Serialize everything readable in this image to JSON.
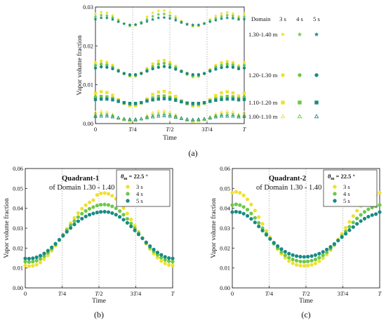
{
  "colors": {
    "s3": "#f0e030",
    "s4": "#6cc84a",
    "s5": "#1a8a84"
  },
  "figure": {
    "label_a": "(a)",
    "label_b": "(b)",
    "label_c": "(c)"
  },
  "chart_data": [
    {
      "id": "a",
      "type": "scatter",
      "xlabel": "Time",
      "ylabel": "Vapor volume fraction",
      "xticks": [
        "0",
        "T/4",
        "T/2",
        "3T/4",
        "T"
      ],
      "yticks": [
        "0.00",
        "0.01",
        "0.02",
        "0.03"
      ],
      "ylim": [
        0,
        0.03
      ],
      "grid": "vertical-dotted",
      "legend": {
        "header": "Domain",
        "columns": [
          "3 s",
          "4 s",
          "5 s"
        ],
        "rows": [
          "1.30-1.40 m",
          "1.20-1.30 m",
          "1.10-1.20 m",
          "1.00-1.10 m"
        ],
        "markers": [
          "star",
          "circle",
          "square",
          "triangle"
        ]
      },
      "x": [
        0,
        0.0385,
        0.077,
        0.1155,
        0.154,
        0.1925,
        0.231,
        0.2695,
        0.308,
        0.3465,
        0.385,
        0.4235,
        0.462,
        0.5005,
        0.539,
        0.5775,
        0.616,
        0.6545,
        0.693,
        0.7315,
        0.77,
        0.8085,
        0.847,
        0.8855,
        0.924,
        0.9625,
        1
      ],
      "series": [
        {
          "domain": "1.30-1.40 m",
          "time": "3 s",
          "values": [
            0.0282,
            0.0287,
            0.0285,
            0.0278,
            0.0268,
            0.0257,
            0.0251,
            0.0253,
            0.0262,
            0.0275,
            0.0285,
            0.029,
            0.0291,
            0.0286,
            0.0276,
            0.0264,
            0.0255,
            0.025,
            0.0251,
            0.0258,
            0.0268,
            0.0277,
            0.0283,
            0.0286,
            0.0283,
            0.0276,
            0.0282
          ]
        },
        {
          "domain": "1.30-1.40 m",
          "time": "4 s",
          "values": [
            0.0275,
            0.0279,
            0.0278,
            0.0273,
            0.0265,
            0.0257,
            0.0252,
            0.0254,
            0.026,
            0.0268,
            0.0276,
            0.0281,
            0.0282,
            0.0278,
            0.0271,
            0.0262,
            0.0255,
            0.0252,
            0.0253,
            0.0258,
            0.0265,
            0.0271,
            0.0276,
            0.0279,
            0.0277,
            0.0272,
            0.0275
          ]
        },
        {
          "domain": "1.30-1.40 m",
          "time": "5 s",
          "values": [
            0.0269,
            0.0272,
            0.0272,
            0.0268,
            0.0262,
            0.0257,
            0.0254,
            0.0255,
            0.0258,
            0.0263,
            0.0268,
            0.0272,
            0.0273,
            0.0271,
            0.0266,
            0.026,
            0.0256,
            0.0254,
            0.0254,
            0.0257,
            0.0262,
            0.0266,
            0.027,
            0.0272,
            0.0271,
            0.0268,
            0.0269
          ]
        },
        {
          "domain": "1.20-1.30 m",
          "time": "3 s",
          "values": [
            0.0157,
            0.0161,
            0.0158,
            0.015,
            0.0138,
            0.0128,
            0.0122,
            0.0122,
            0.013,
            0.0142,
            0.0154,
            0.0161,
            0.0163,
            0.0158,
            0.0148,
            0.0136,
            0.0126,
            0.012,
            0.0121,
            0.0128,
            0.0139,
            0.015,
            0.0157,
            0.016,
            0.0157,
            0.0149,
            0.0157
          ]
        },
        {
          "domain": "1.20-1.30 m",
          "time": "4 s",
          "values": [
            0.015,
            0.0153,
            0.0151,
            0.0145,
            0.0137,
            0.0129,
            0.0124,
            0.0124,
            0.0129,
            0.0138,
            0.0147,
            0.0153,
            0.0155,
            0.0152,
            0.0144,
            0.0135,
            0.0128,
            0.0123,
            0.0124,
            0.0129,
            0.0137,
            0.0145,
            0.015,
            0.0153,
            0.0151,
            0.0145,
            0.015
          ]
        },
        {
          "domain": "1.20-1.30 m",
          "time": "5 s",
          "values": [
            0.0143,
            0.0146,
            0.0145,
            0.0141,
            0.0135,
            0.0129,
            0.0126,
            0.0126,
            0.0129,
            0.0135,
            0.0141,
            0.0145,
            0.0147,
            0.0145,
            0.014,
            0.0134,
            0.0129,
            0.0126,
            0.0126,
            0.0129,
            0.0135,
            0.014,
            0.0144,
            0.0146,
            0.0145,
            0.0141,
            0.0143
          ]
        },
        {
          "domain": "1.10-1.20 m",
          "time": "3 s",
          "values": [
            0.0078,
            0.0082,
            0.008,
            0.0073,
            0.0062,
            0.0052,
            0.0046,
            0.0046,
            0.0053,
            0.0064,
            0.0075,
            0.0081,
            0.0083,
            0.0079,
            0.007,
            0.0059,
            0.005,
            0.0045,
            0.0046,
            0.0052,
            0.0062,
            0.0072,
            0.0079,
            0.0082,
            0.0079,
            0.0071,
            0.0078
          ]
        },
        {
          "domain": "1.10-1.20 m",
          "time": "4 s",
          "values": [
            0.0068,
            0.007,
            0.0069,
            0.0065,
            0.0059,
            0.0053,
            0.005,
            0.005,
            0.0054,
            0.006,
            0.0066,
            0.007,
            0.0071,
            0.0068,
            0.0063,
            0.0057,
            0.0052,
            0.0049,
            0.005,
            0.0053,
            0.0059,
            0.0064,
            0.0068,
            0.007,
            0.0069,
            0.0065,
            0.0068
          ]
        },
        {
          "domain": "1.10-1.20 m",
          "time": "5 s",
          "values": [
            0.0062,
            0.0063,
            0.0063,
            0.0061,
            0.0057,
            0.0054,
            0.0052,
            0.0052,
            0.0054,
            0.0058,
            0.0061,
            0.0063,
            0.0064,
            0.0063,
            0.006,
            0.0056,
            0.0053,
            0.0052,
            0.0052,
            0.0054,
            0.0057,
            0.006,
            0.0062,
            0.0063,
            0.0063,
            0.0061,
            0.0062
          ]
        },
        {
          "domain": "1.00-1.10 m",
          "time": "3 s",
          "values": [
            0.0028,
            0.0031,
            0.0029,
            0.0023,
            0.0015,
            0.0009,
            0.0006,
            0.0007,
            0.0012,
            0.002,
            0.0027,
            0.0031,
            0.0032,
            0.0029,
            0.0022,
            0.0014,
            0.0008,
            0.0005,
            0.0006,
            0.001,
            0.0017,
            0.0024,
            0.0029,
            0.0031,
            0.0029,
            0.0023,
            0.0028
          ]
        },
        {
          "domain": "1.00-1.10 m",
          "time": "4 s",
          "values": [
            0.0022,
            0.0024,
            0.0023,
            0.002,
            0.0015,
            0.0011,
            0.0009,
            0.0009,
            0.0012,
            0.0017,
            0.0021,
            0.0024,
            0.0025,
            0.0023,
            0.0019,
            0.0014,
            0.001,
            0.0008,
            0.0009,
            0.0011,
            0.0015,
            0.002,
            0.0023,
            0.0024,
            0.0023,
            0.002,
            0.0022
          ]
        },
        {
          "domain": "1.00-1.10 m",
          "time": "5 s",
          "values": [
            0.0018,
            0.0019,
            0.0019,
            0.0017,
            0.0014,
            0.0012,
            0.0011,
            0.0011,
            0.0012,
            0.0015,
            0.0017,
            0.0019,
            0.002,
            0.0019,
            0.0016,
            0.0013,
            0.0011,
            0.001,
            0.0011,
            0.0012,
            0.0014,
            0.0017,
            0.0019,
            0.0019,
            0.0019,
            0.0017,
            0.0018
          ]
        }
      ]
    },
    {
      "id": "b",
      "type": "scatter",
      "xlabel": "Time",
      "ylabel": "Vapor volume fraction",
      "xticks": [
        "0",
        "T/4",
        "T/2",
        "3T/4",
        "T"
      ],
      "yticks": [
        "0.00",
        "0.01",
        "0.02",
        "0.03",
        "0.04",
        "0.05",
        "0.06"
      ],
      "ylim": [
        0,
        0.06
      ],
      "grid": "vertical-dotted",
      "annotation_title": "Quadrant-1",
      "annotation_sub": "of Domain 1.30 - 1.40 m",
      "legend_title_main": "θ",
      "legend_title_sub": "m",
      "legend_title_value": " = 22.5 °",
      "legend": [
        "3 s",
        "4 s",
        "5 s"
      ],
      "x": [
        0,
        0.0256,
        0.0513,
        0.0769,
        0.1026,
        0.1282,
        0.1538,
        0.1795,
        0.2051,
        0.2308,
        0.2564,
        0.2821,
        0.3077,
        0.3333,
        0.359,
        0.3846,
        0.4103,
        0.4359,
        0.4615,
        0.4872,
        0.5128,
        0.5385,
        0.5641,
        0.5897,
        0.6154,
        0.641,
        0.6667,
        0.6923,
        0.7179,
        0.7436,
        0.7692,
        0.7949,
        0.8205,
        0.8462,
        0.8718,
        0.8974,
        0.9231,
        0.9487,
        0.9744,
        1
      ],
      "series": [
        {
          "name": "3 s",
          "values": [
            0.0112,
            0.0109,
            0.0111,
            0.0117,
            0.0128,
            0.0144,
            0.0163,
            0.0186,
            0.0212,
            0.0239,
            0.0268,
            0.0297,
            0.0325,
            0.0352,
            0.0376,
            0.0398,
            0.0416,
            0.043,
            0.0441,
            0.0467,
            0.0475,
            0.0477,
            0.0473,
            0.0463,
            0.0448,
            0.0427,
            0.0402,
            0.0374,
            0.0344,
            0.0313,
            0.0282,
            0.0251,
            0.0222,
            0.0195,
            0.0172,
            0.0152,
            0.0135,
            0.0123,
            0.0115,
            0.0112
          ]
        },
        {
          "name": "4 s",
          "values": [
            0.0132,
            0.013,
            0.0132,
            0.0137,
            0.0146,
            0.0159,
            0.0176,
            0.0196,
            0.0218,
            0.0241,
            0.0266,
            0.029,
            0.0314,
            0.0336,
            0.0356,
            0.0373,
            0.0387,
            0.0398,
            0.0406,
            0.0414,
            0.0418,
            0.0419,
            0.0417,
            0.041,
            0.04,
            0.0386,
            0.0368,
            0.0347,
            0.0324,
            0.03,
            0.0275,
            0.025,
            0.0226,
            0.0203,
            0.0183,
            0.0166,
            0.0152,
            0.0141,
            0.0134,
            0.0132
          ]
        },
        {
          "name": "5 s",
          "values": [
            0.0148,
            0.0147,
            0.0149,
            0.0154,
            0.0162,
            0.0173,
            0.0187,
            0.0204,
            0.0222,
            0.0242,
            0.0262,
            0.0282,
            0.0301,
            0.0319,
            0.0335,
            0.0348,
            0.0359,
            0.0368,
            0.0374,
            0.0379,
            0.0382,
            0.0383,
            0.0381,
            0.0376,
            0.0368,
            0.0357,
            0.0343,
            0.0327,
            0.0309,
            0.0289,
            0.0269,
            0.0249,
            0.0229,
            0.021,
            0.0193,
            0.0178,
            0.0166,
            0.0156,
            0.015,
            0.0148
          ]
        }
      ]
    },
    {
      "id": "c",
      "type": "scatter",
      "xlabel": "Time",
      "ylabel": "Vapor volume fraction",
      "xticks": [
        "0",
        "T/4",
        "T/2",
        "3T/4",
        "T"
      ],
      "yticks": [
        "0.00",
        "0.01",
        "0.02",
        "0.03",
        "0.04",
        "0.05",
        "0.06"
      ],
      "ylim": [
        0,
        0.06
      ],
      "grid": "vertical-dotted",
      "annotation_title": "Quadrant-2",
      "annotation_sub": "of Domain 1.30 - 1.40 m",
      "legend_title_main": "θ",
      "legend_title_sub": "m",
      "legend_title_value": " = 22.5 °",
      "legend": [
        "3 s",
        "4 s",
        "5 s"
      ],
      "x": [
        0,
        0.0256,
        0.0513,
        0.0769,
        0.1026,
        0.1282,
        0.1538,
        0.1795,
        0.2051,
        0.2308,
        0.2564,
        0.2821,
        0.3077,
        0.3333,
        0.359,
        0.3846,
        0.4103,
        0.4359,
        0.4615,
        0.4872,
        0.5128,
        0.5385,
        0.5641,
        0.5897,
        0.6154,
        0.641,
        0.6667,
        0.6923,
        0.7179,
        0.7436,
        0.7692,
        0.7949,
        0.8205,
        0.8462,
        0.8718,
        0.8974,
        0.9231,
        0.9487,
        0.9744,
        1
      ],
      "series": [
        {
          "name": "3 s",
          "values": [
            0.0478,
            0.0483,
            0.0478,
            0.0465,
            0.0445,
            0.0419,
            0.0389,
            0.0356,
            0.0322,
            0.0287,
            0.0254,
            0.0223,
            0.0195,
            0.0171,
            0.0151,
            0.0135,
            0.0124,
            0.0116,
            0.0112,
            0.0111,
            0.0112,
            0.0116,
            0.0123,
            0.0134,
            0.0149,
            0.0168,
            0.019,
            0.0215,
            0.0243,
            0.0272,
            0.0302,
            0.0332,
            0.0361,
            0.0388,
            0.0412,
            0.0432,
            0.0448,
            0.0459,
            0.0466,
            0.0478
          ]
        },
        {
          "name": "4 s",
          "values": [
            0.0417,
            0.042,
            0.0416,
            0.0407,
            0.0393,
            0.0374,
            0.0352,
            0.0327,
            0.03,
            0.0273,
            0.0247,
            0.0222,
            0.02,
            0.018,
            0.0164,
            0.0152,
            0.0143,
            0.0137,
            0.0133,
            0.0132,
            0.0133,
            0.0137,
            0.0143,
            0.0152,
            0.0164,
            0.0179,
            0.0197,
            0.0217,
            0.0239,
            0.0261,
            0.0284,
            0.0307,
            0.0329,
            0.0349,
            0.0367,
            0.0382,
            0.0395,
            0.0404,
            0.041,
            0.0417
          ]
        },
        {
          "name": "5 s",
          "values": [
            0.0381,
            0.0383,
            0.038,
            0.0373,
            0.0362,
            0.0347,
            0.0329,
            0.0309,
            0.0288,
            0.0267,
            0.0246,
            0.0227,
            0.021,
            0.0195,
            0.0182,
            0.0172,
            0.0165,
            0.016,
            0.0157,
            0.0156,
            0.0157,
            0.016,
            0.0165,
            0.0172,
            0.0181,
            0.0193,
            0.0206,
            0.0221,
            0.0238,
            0.0255,
            0.0272,
            0.029,
            0.0306,
            0.0322,
            0.0336,
            0.0348,
            0.0358,
            0.0366,
            0.0371,
            0.0381
          ]
        }
      ]
    }
  ]
}
